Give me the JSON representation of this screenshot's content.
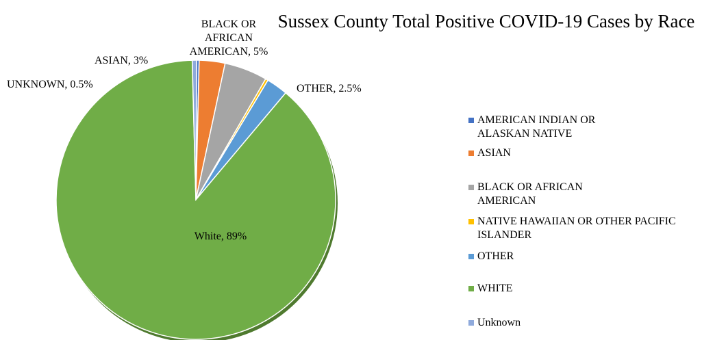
{
  "chart_data": {
    "type": "pie",
    "title": "Sussex County Total Positive COVID-19 Cases by Race",
    "categories": [
      "AMERICAN INDIAN OR ALASKAN NATIVE",
      "ASIAN",
      "BLACK OR AFRICAN AMERICAN",
      "NATIVE HAWAIIAN OR OTHER PACIFIC ISLANDER",
      "OTHER",
      "WHITE",
      "Unknown"
    ],
    "values": [
      0.3,
      3,
      5,
      0.3,
      2.5,
      89,
      0.5
    ],
    "colors": [
      "#4472C4",
      "#ED7D31",
      "#A5A5A5",
      "#FFC000",
      "#5B9BD5",
      "#70AD47",
      "#8FAADC"
    ],
    "data_labels": [
      {
        "category": "Unknown",
        "text": "UNKNOWN, 0.5%"
      },
      {
        "category": "ASIAN",
        "text": "ASIAN, 3%"
      },
      {
        "category": "BLACK OR AFRICAN AMERICAN",
        "lines": [
          "BLACK OR",
          "AFRICAN",
          "AMERICAN, 5%"
        ]
      },
      {
        "category": "OTHER",
        "text": "OTHER, 2.5%"
      },
      {
        "category": "WHITE",
        "text": "White, 89%"
      }
    ],
    "legend_position": "right"
  }
}
